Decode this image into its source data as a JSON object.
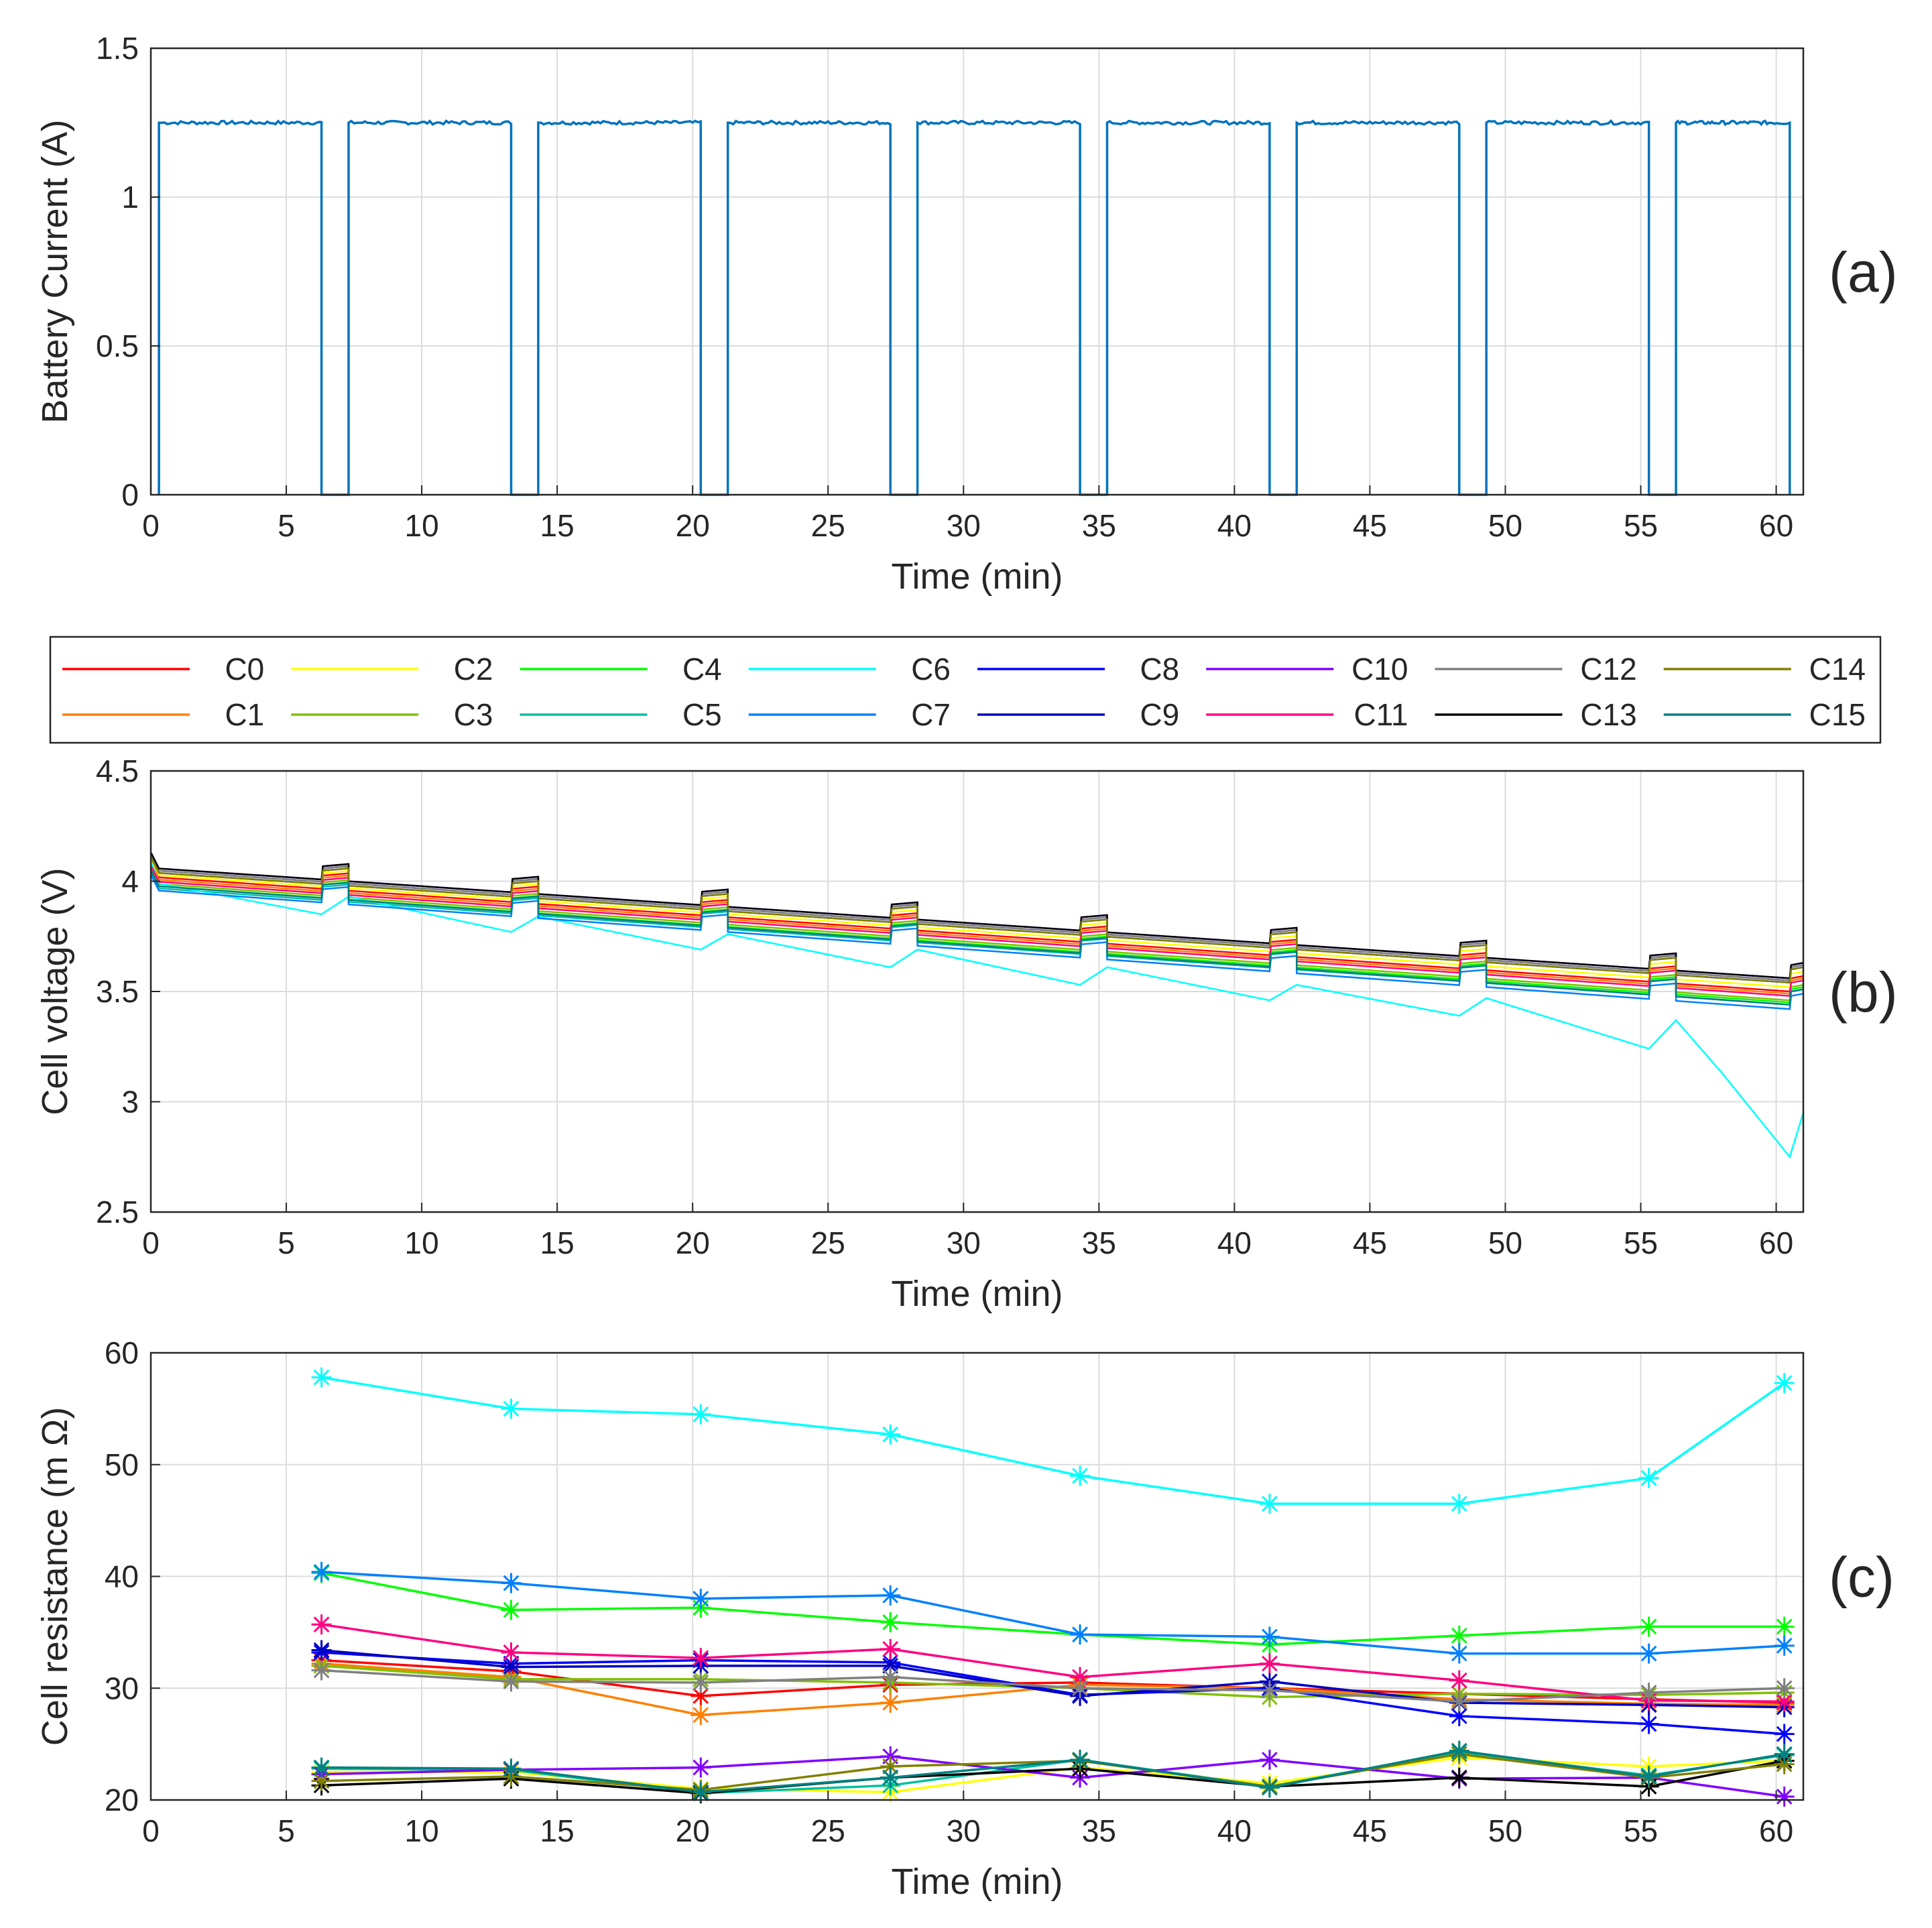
{
  "chart_data": [
    {
      "panel_label": "(a)",
      "type": "line",
      "ylabel": "Battery Current (A)",
      "xlabel": "Time (min)",
      "xlim": [
        0,
        61
      ],
      "ylim": [
        0,
        1.5
      ],
      "xticks": [
        "0",
        "5",
        "10",
        "15",
        "20",
        "25",
        "30",
        "35",
        "40",
        "45",
        "50",
        "55",
        "60"
      ],
      "yticks": [
        "0",
        "0.5",
        "1",
        "1.5"
      ],
      "grid": true,
      "color": "#0072BD",
      "on_level": 1.25,
      "segments": [
        [
          0.3,
          6.3
        ],
        [
          7.3,
          13.3
        ],
        [
          14.3,
          20.3
        ],
        [
          21.3,
          27.3
        ],
        [
          28.3,
          34.3
        ],
        [
          35.3,
          41.3
        ],
        [
          42.3,
          48.3
        ],
        [
          49.3,
          55.3
        ],
        [
          56.3,
          60.5
        ]
      ]
    },
    {
      "panel_label": "(b)",
      "type": "line",
      "ylabel": "Cell voltage (V)",
      "xlabel": "Time (min)",
      "xlim": [
        0,
        61
      ],
      "ylim": [
        2.5,
        4.5
      ],
      "xticks": [
        "0",
        "5",
        "10",
        "15",
        "20",
        "25",
        "30",
        "35",
        "40",
        "45",
        "50",
        "55",
        "60"
      ],
      "yticks": [
        "2.5",
        "3",
        "3.5",
        "4",
        "4.5"
      ],
      "grid": true,
      "legend": {
        "position": "top",
        "entries": [
          {
            "name": "C0",
            "color": "#FF0000"
          },
          {
            "name": "C1",
            "color": "#FF8000"
          },
          {
            "name": "C2",
            "color": "#FFFF00"
          },
          {
            "name": "C3",
            "color": "#80C000"
          },
          {
            "name": "C4",
            "color": "#00FF00"
          },
          {
            "name": "C5",
            "color": "#00C0A0"
          },
          {
            "name": "C6",
            "color": "#00FFFF"
          },
          {
            "name": "C7",
            "color": "#0080FF"
          },
          {
            "name": "C8",
            "color": "#0000FF"
          },
          {
            "name": "C9",
            "color": "#0000C0"
          },
          {
            "name": "C10",
            "color": "#8000FF"
          },
          {
            "name": "C11",
            "color": "#FF0080"
          },
          {
            "name": "C12",
            "color": "#808080"
          },
          {
            "name": "C13",
            "color": "#000000"
          },
          {
            "name": "C14",
            "color": "#808000"
          },
          {
            "name": "C15",
            "color": "#008080"
          }
        ]
      },
      "series": [
        {
          "name": "C0",
          "color": "#FF0000",
          "start": 4.02,
          "end": 3.5
        },
        {
          "name": "C1",
          "color": "#FF8000",
          "start": 4.01,
          "end": 3.49
        },
        {
          "name": "C2",
          "color": "#FFFF00",
          "start": 4.03,
          "end": 3.52
        },
        {
          "name": "C3",
          "color": "#80C000",
          "start": 3.99,
          "end": 3.46
        },
        {
          "name": "C4",
          "color": "#00FF00",
          "start": 3.98,
          "end": 3.45
        },
        {
          "name": "C5",
          "color": "#00C0A0",
          "start": 3.97,
          "end": 3.44
        },
        {
          "name": "C6",
          "color": "#00FFFF",
          "points": [
            [
              0,
              4.09
            ],
            [
              0.3,
              3.99
            ],
            [
              6.3,
              3.85
            ],
            [
              7.3,
              3.93
            ],
            [
              13.3,
              3.77
            ],
            [
              14.3,
              3.84
            ],
            [
              20.3,
              3.69
            ],
            [
              21.3,
              3.76
            ],
            [
              27.3,
              3.61
            ],
            [
              28.3,
              3.69
            ],
            [
              34.3,
              3.53
            ],
            [
              35.3,
              3.61
            ],
            [
              41.3,
              3.46
            ],
            [
              42.3,
              3.53
            ],
            [
              48.3,
              3.39
            ],
            [
              49.3,
              3.47
            ],
            [
              55.3,
              3.24
            ],
            [
              56.3,
              3.37
            ],
            [
              58,
              3.13
            ],
            [
              60.5,
              2.75
            ],
            [
              61,
              2.95
            ]
          ]
        },
        {
          "name": "C7",
          "color": "#0080FF",
          "start": 3.96,
          "end": 3.42
        },
        {
          "name": "C8",
          "color": "#0000FF",
          "start": 4.05,
          "end": 3.55
        },
        {
          "name": "C9",
          "color": "#0000C0",
          "start": 4.04,
          "end": 3.54
        },
        {
          "name": "C10",
          "color": "#8000FF",
          "start": 4.06,
          "end": 3.56
        },
        {
          "name": "C11",
          "color": "#FF0080",
          "start": 4.0,
          "end": 3.48
        },
        {
          "name": "C12",
          "color": "#808080",
          "start": 4.05,
          "end": 3.55
        },
        {
          "name": "C13",
          "color": "#000000",
          "start": 4.06,
          "end": 3.56
        },
        {
          "name": "C14",
          "color": "#808000",
          "start": 4.04,
          "end": 3.54
        },
        {
          "name": "C15",
          "color": "#008080",
          "start": 3.98,
          "end": 3.44
        }
      ]
    },
    {
      "panel_label": "(c)",
      "type": "line",
      "marker": "asterisk",
      "ylabel": "Cell resistance (m Ω)",
      "xlabel": "Time (min)",
      "xlim": [
        0,
        61
      ],
      "ylim": [
        20,
        60
      ],
      "xticks": [
        "0",
        "5",
        "10",
        "15",
        "20",
        "25",
        "30",
        "35",
        "40",
        "45",
        "50",
        "55",
        "60"
      ],
      "yticks": [
        "20",
        "30",
        "40",
        "50",
        "60"
      ],
      "grid": true,
      "x": [
        6.3,
        13.3,
        20.3,
        27.3,
        34.3,
        41.3,
        48.3,
        55.3,
        60.3
      ],
      "series": [
        {
          "name": "C0",
          "color": "#FF0000",
          "values": [
            32.5,
            31.5,
            29.3,
            30.3,
            30.5,
            30.0,
            29.5,
            29.0,
            28.7
          ]
        },
        {
          "name": "C1",
          "color": "#FF8000",
          "values": [
            32.2,
            31.0,
            27.6,
            28.7,
            30.3,
            30.0,
            29.0,
            28.6,
            28.5
          ]
        },
        {
          "name": "C2",
          "color": "#FFFF00",
          "values": [
            22.5,
            22.5,
            21.0,
            20.7,
            22.9,
            21.5,
            23.8,
            23.0,
            23.5
          ]
        },
        {
          "name": "C3",
          "color": "#80C000",
          "values": [
            32.0,
            30.8,
            30.8,
            30.5,
            30.0,
            29.2,
            29.5,
            29.4,
            29.6
          ]
        },
        {
          "name": "C4",
          "color": "#00FF00",
          "values": [
            40.3,
            37.0,
            37.2,
            35.9,
            34.8,
            33.9,
            34.7,
            35.5,
            35.5
          ]
        },
        {
          "name": "C5",
          "color": "#00C0A0",
          "values": [
            22.8,
            22.7,
            20.6,
            21.3,
            23.6,
            21.2,
            24.3,
            22.2,
            24.0
          ]
        },
        {
          "name": "C6",
          "color": "#00FFFF",
          "values": [
            57.8,
            55.0,
            54.5,
            52.7,
            49.0,
            46.5,
            46.5,
            48.8,
            57.3
          ]
        },
        {
          "name": "C7",
          "color": "#0080FF",
          "values": [
            40.4,
            39.4,
            38.0,
            38.3,
            34.8,
            34.6,
            33.1,
            33.1,
            33.8
          ]
        },
        {
          "name": "C8",
          "color": "#0000FF",
          "values": [
            33.2,
            32.2,
            32.5,
            32.3,
            29.4,
            30.0,
            27.5,
            26.8,
            25.9
          ]
        },
        {
          "name": "C9",
          "color": "#0000C0",
          "values": [
            33.4,
            31.9,
            32.0,
            32.0,
            29.3,
            30.6,
            28.7,
            28.5,
            28.3
          ]
        },
        {
          "name": "C10",
          "color": "#8000FF",
          "values": [
            22.3,
            22.7,
            22.9,
            23.9,
            22.0,
            23.6,
            21.9,
            22.0,
            20.3
          ]
        },
        {
          "name": "C11",
          "color": "#FF0080",
          "values": [
            35.7,
            33.2,
            32.7,
            33.5,
            31.0,
            32.2,
            30.7,
            28.9,
            28.8
          ]
        },
        {
          "name": "C12",
          "color": "#808080",
          "values": [
            31.6,
            30.6,
            30.5,
            31.0,
            30.0,
            29.8,
            28.8,
            29.6,
            30.0
          ]
        },
        {
          "name": "C13",
          "color": "#000000",
          "values": [
            21.3,
            21.9,
            20.6,
            22.0,
            22.8,
            21.2,
            22.0,
            21.2,
            23.5
          ]
        },
        {
          "name": "C14",
          "color": "#808000",
          "values": [
            21.7,
            22.1,
            20.9,
            23.0,
            23.5,
            21.2,
            24.1,
            22.0,
            23.2
          ]
        },
        {
          "name": "C15",
          "color": "#008080",
          "values": [
            22.9,
            22.8,
            20.7,
            22.0,
            23.6,
            21.1,
            24.4,
            22.1,
            24.1
          ]
        }
      ]
    }
  ]
}
